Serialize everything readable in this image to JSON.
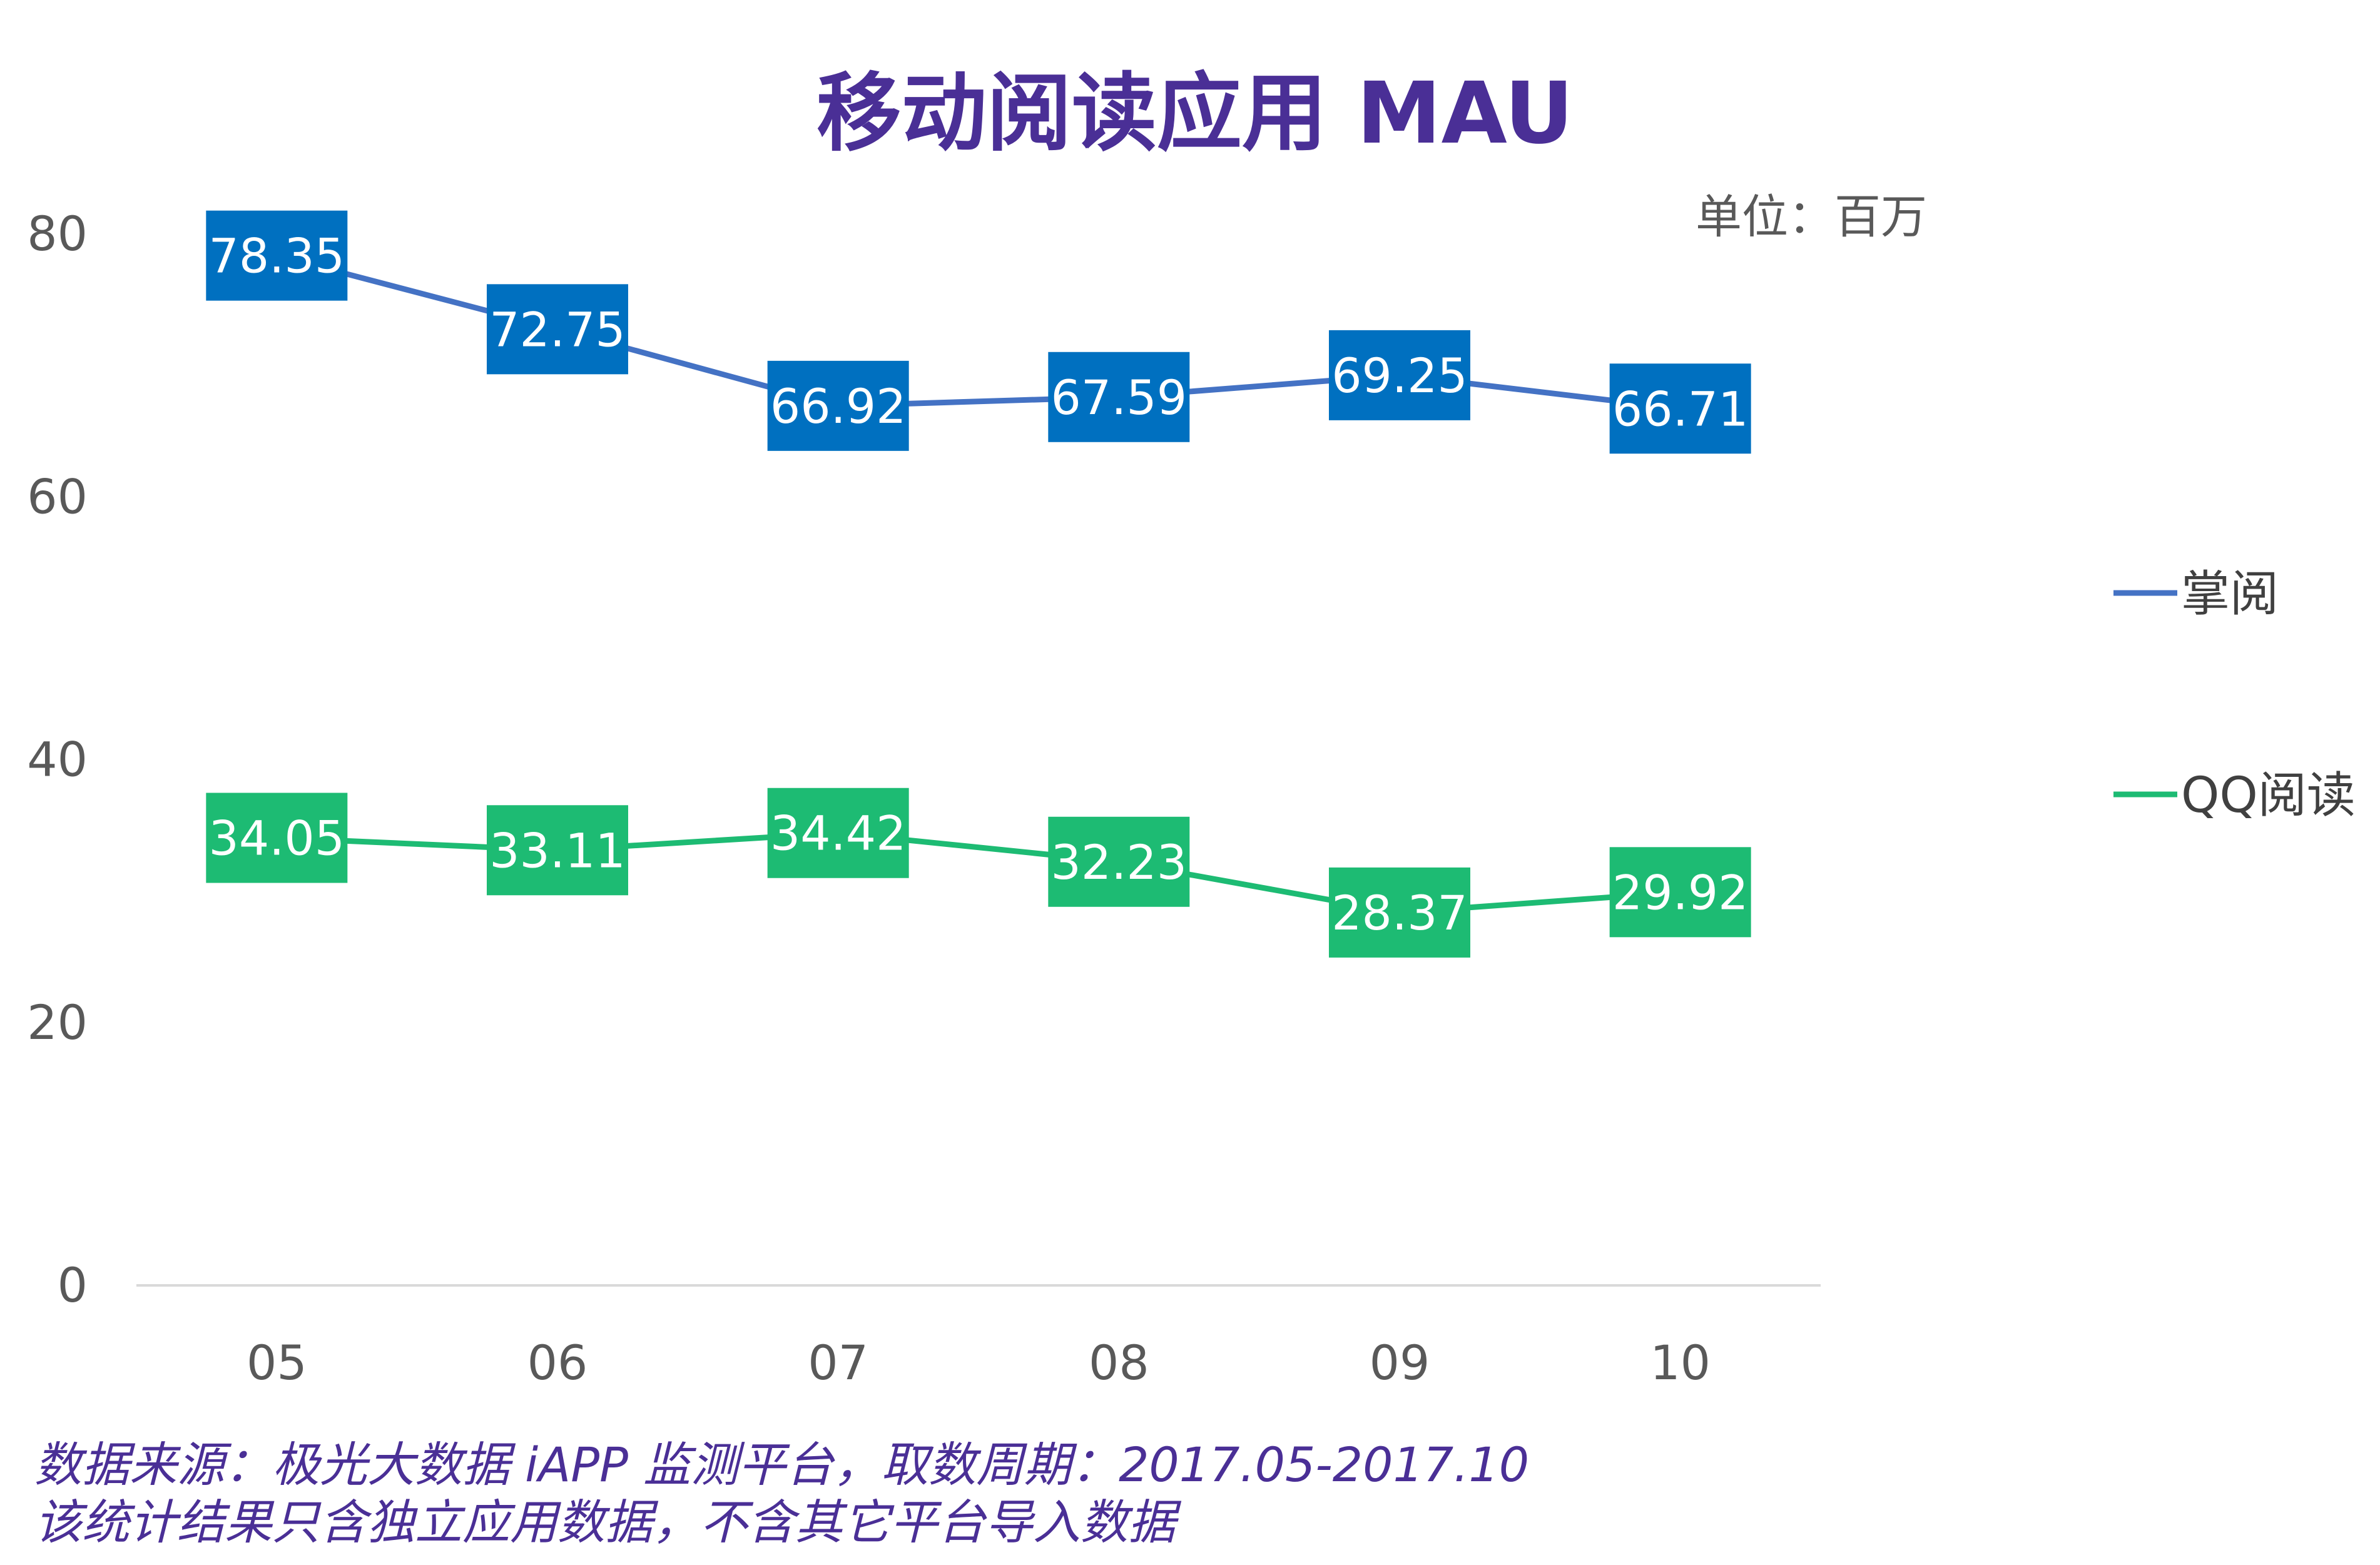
{
  "chart_data": {
    "type": "line",
    "title": "移动阅读应用 MAU",
    "unit_label": "单位：百万",
    "categories": [
      "05",
      "06",
      "07",
      "08",
      "09",
      "10"
    ],
    "ylim": [
      0,
      80
    ],
    "yticks": [
      "0",
      "20",
      "40",
      "60",
      "80"
    ],
    "grid": false,
    "legend_position": "right",
    "series": [
      {
        "name": "掌阅",
        "values": [
          78.35,
          72.75,
          66.92,
          67.59,
          69.25,
          66.71
        ],
        "labels": [
          "78.35",
          "72.75",
          "66.92",
          "67.59",
          "69.25",
          "66.71"
        ]
      },
      {
        "name": "QQ阅读",
        "values": [
          34.05,
          33.11,
          34.42,
          32.23,
          28.37,
          29.92
        ],
        "labels": [
          "34.05",
          "33.11",
          "34.42",
          "32.23",
          "28.37",
          "29.92"
        ]
      }
    ]
  },
  "footnotes": [
    "数据来源：极光大数据 iAPP 监测平台，取数周期：2017.05-2017.10",
    "该统计结果只含独立应用数据，不含其它平台导入数据"
  ],
  "colors": {
    "title": "#4a2f96",
    "series_line_1": "#4472c4",
    "series_box_1": "#0070c0",
    "series_line_2": "#1dbb73",
    "series_box_2": "#1dbb73",
    "axis_text": "#595959",
    "axis_line": "#d9d9d9",
    "footnote": "#4a2f96"
  }
}
